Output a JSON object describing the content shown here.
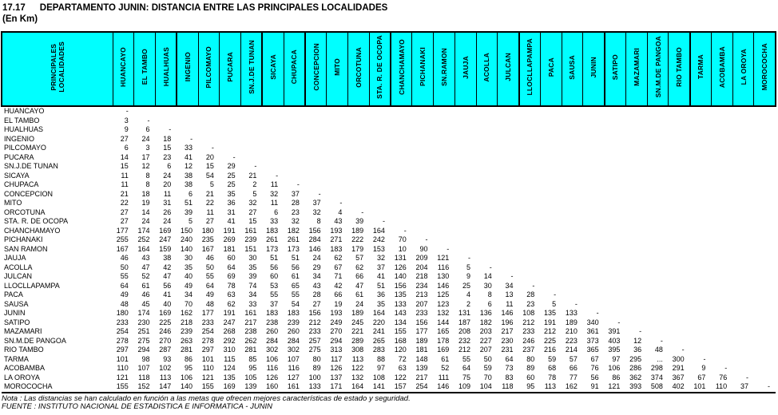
{
  "title": {
    "number": "17.17",
    "text": "DEPARTAMENTO JUNIN: DISTANCIA ENTRE LAS PRINCIPALES LOCALIDADES"
  },
  "subtitle": "(En Km)",
  "colors": {
    "header_bg": "#00ffff",
    "border": "#000000"
  },
  "note": "Nota : Las distancias se han calculado en función a las metas que ofrecen mejores características de estado y seguridad.",
  "source": "FUENTE : INSTITUTO NACIONAL DE ESTADISTICA E INFORMATICA - JUNIN",
  "table": {
    "corner_header": "PRINCIPALES\nLOCALIDADES",
    "columns": [
      "HUANCAYO",
      "EL TAMBO",
      "HUALHUAS",
      "INGENIO",
      "PILCOMAYO",
      "PUCARA",
      "SN.J.DE TUNAN",
      "SICAYA",
      "CHUPACA",
      "CONCEPCION",
      "MITO",
      "ORCOTUNA",
      "STA. R. DE OCOPA",
      "CHANCHAMAYO",
      "PICHANAKI",
      "SN.RAMON",
      "JAUJA",
      "ACOLLA",
      "JULCAN",
      "LLOCLLAPAMPA",
      "PACA",
      "SAUSA",
      "JUNIN",
      "SATIPO",
      "MAZAMARI",
      "SN.M.DE PANGOA",
      "RIO TAMBO",
      "TARMA",
      "ACOBAMBA",
      "LA OROYA",
      "MOROCOCHA"
    ],
    "rows": [
      {
        "label": "HUANCAYO",
        "values": [
          "-"
        ]
      },
      {
        "label": "EL TAMBO",
        "values": [
          "3",
          "-"
        ]
      },
      {
        "label": "HUALHUAS",
        "values": [
          "9",
          "6",
          "-"
        ]
      },
      {
        "label": "INGENIO",
        "values": [
          "27",
          "24",
          "18",
          "-"
        ]
      },
      {
        "label": "PILCOMAYO",
        "values": [
          "6",
          "3",
          "15",
          "33",
          "-"
        ]
      },
      {
        "label": "PUCARA",
        "values": [
          "14",
          "17",
          "23",
          "41",
          "20",
          "-"
        ]
      },
      {
        "label": "SN.J.DE TUNAN",
        "values": [
          "15",
          "12",
          "6",
          "12",
          "15",
          "29",
          "-"
        ]
      },
      {
        "label": "SICAYA",
        "values": [
          "11",
          "8",
          "24",
          "38",
          "54",
          "25",
          "21",
          "-"
        ]
      },
      {
        "label": "CHUPACA",
        "values": [
          "11",
          "8",
          "20",
          "38",
          "5",
          "25",
          "2",
          "11",
          "-"
        ]
      },
      {
        "label": "CONCEPCION",
        "values": [
          "21",
          "18",
          "11",
          "6",
          "21",
          "35",
          "5",
          "32",
          "37",
          "-"
        ]
      },
      {
        "label": "MITO",
        "values": [
          "22",
          "19",
          "31",
          "51",
          "22",
          "36",
          "32",
          "11",
          "28",
          "37",
          "-"
        ]
      },
      {
        "label": "ORCOTUNA",
        "values": [
          "27",
          "14",
          "26",
          "39",
          "11",
          "31",
          "27",
          "6",
          "23",
          "32",
          "4",
          "-"
        ]
      },
      {
        "label": "STA. R. DE OCOPA",
        "values": [
          "27",
          "24",
          "24",
          "5",
          "27",
          "41",
          "15",
          "33",
          "32",
          "8",
          "43",
          "39",
          "-"
        ]
      },
      {
        "label": "CHANCHAMAYO",
        "values": [
          "177",
          "174",
          "169",
          "150",
          "180",
          "191",
          "161",
          "183",
          "182",
          "156",
          "193",
          "189",
          "164",
          "-"
        ]
      },
      {
        "label": "PICHANAKI",
        "values": [
          "255",
          "252",
          "247",
          "240",
          "235",
          "269",
          "239",
          "261",
          "261",
          "284",
          "271",
          "222",
          "242",
          "70",
          "-"
        ]
      },
      {
        "label": "SAN RAMON",
        "values": [
          "167",
          "164",
          "159",
          "140",
          "167",
          "181",
          "151",
          "173",
          "173",
          "146",
          "183",
          "179",
          "153",
          "10",
          "90",
          "-"
        ]
      },
      {
        "label": "JAUJA",
        "values": [
          "46",
          "43",
          "38",
          "30",
          "46",
          "60",
          "30",
          "51",
          "51",
          "24",
          "62",
          "57",
          "32",
          "131",
          "209",
          "121",
          "-"
        ]
      },
      {
        "label": "ACOLLA",
        "values": [
          "50",
          "47",
          "42",
          "35",
          "50",
          "64",
          "35",
          "56",
          "56",
          "29",
          "67",
          "62",
          "37",
          "126",
          "204",
          "116",
          "5",
          "-"
        ]
      },
      {
        "label": "JULCAN",
        "values": [
          "55",
          "52",
          "47",
          "40",
          "55",
          "69",
          "39",
          "60",
          "61",
          "34",
          "71",
          "66",
          "41",
          "140",
          "218",
          "130",
          "9",
          "14",
          "-"
        ]
      },
      {
        "label": "LLOCLLAPAMPA",
        "values": [
          "64",
          "61",
          "56",
          "49",
          "64",
          "78",
          "74",
          "53",
          "65",
          "43",
          "42",
          "47",
          "51",
          "156",
          "234",
          "146",
          "25",
          "30",
          "34",
          "-"
        ]
      },
      {
        "label": "PACA",
        "values": [
          "49",
          "46",
          "41",
          "34",
          "49",
          "63",
          "34",
          "55",
          "55",
          "28",
          "66",
          "61",
          "36",
          "135",
          "213",
          "125",
          "4",
          "8",
          "13",
          "28",
          "-"
        ]
      },
      {
        "label": "SAUSA",
        "values": [
          "48",
          "45",
          "40",
          "70",
          "48",
          "62",
          "33",
          "37",
          "54",
          "27",
          "19",
          "24",
          "35",
          "133",
          "207",
          "123",
          "2",
          "6",
          "11",
          "23",
          "5",
          "-"
        ]
      },
      {
        "label": "JUNIN",
        "values": [
          "180",
          "174",
          "169",
          "162",
          "177",
          "191",
          "161",
          "183",
          "183",
          "156",
          "193",
          "189",
          "164",
          "143",
          "233",
          "132",
          "131",
          "136",
          "146",
          "108",
          "135",
          "133",
          "-"
        ]
      },
      {
        "label": "SATIPO",
        "values": [
          "233",
          "230",
          "225",
          "218",
          "233",
          "247",
          "217",
          "238",
          "239",
          "212",
          "249",
          "245",
          "220",
          "134",
          "156",
          "144",
          "187",
          "182",
          "196",
          "212",
          "191",
          "189",
          "340",
          "-"
        ]
      },
      {
        "label": "MAZAMARI",
        "values": [
          "254",
          "251",
          "246",
          "239",
          "254",
          "268",
          "238",
          "260",
          "260",
          "233",
          "270",
          "221",
          "241",
          "155",
          "177",
          "165",
          "208",
          "203",
          "217",
          "233",
          "212",
          "210",
          "361",
          "391",
          "-"
        ]
      },
      {
        "label": "SN.M.DE PANGOA",
        "values": [
          "278",
          "275",
          "270",
          "263",
          "278",
          "292",
          "262",
          "284",
          "284",
          "257",
          "294",
          "289",
          "265",
          "168",
          "189",
          "178",
          "232",
          "227",
          "230",
          "246",
          "225",
          "223",
          "373",
          "403",
          "12",
          "-"
        ]
      },
      {
        "label": "RIO TAMBO",
        "values": [
          "297",
          "294",
          "287",
          "281",
          "297",
          "310",
          "281",
          "302",
          "302",
          "275",
          "313",
          "308",
          "283",
          "120",
          "181",
          "169",
          "212",
          "207",
          "231",
          "237",
          "216",
          "214",
          "365",
          "395",
          "36",
          "48",
          "-"
        ]
      },
      {
        "label": "TARMA",
        "values": [
          "101",
          "98",
          "93",
          "86",
          "101",
          "115",
          "85",
          "106",
          "107",
          "80",
          "117",
          "113",
          "88",
          "72",
          "148",
          "61",
          "55",
          "50",
          "64",
          "80",
          "59",
          "57",
          "67",
          "97",
          "295",
          "...",
          "300",
          "-"
        ]
      },
      {
        "label": "ACOBAMBA",
        "values": [
          "110",
          "107",
          "102",
          "95",
          "110",
          "124",
          "95",
          "116",
          "116",
          "89",
          "126",
          "122",
          "97",
          "63",
          "139",
          "52",
          "64",
          "59",
          "73",
          "89",
          "68",
          "66",
          "76",
          "106",
          "286",
          "298",
          "291",
          "9",
          "-"
        ]
      },
      {
        "label": "LA OROYA",
        "values": [
          "121",
          "118",
          "113",
          "106",
          "121",
          "135",
          "105",
          "126",
          "127",
          "100",
          "137",
          "132",
          "108",
          "122",
          "217",
          "111",
          "75",
          "70",
          "83",
          "60",
          "78",
          "77",
          "56",
          "86",
          "362",
          "374",
          "367",
          "67",
          "76",
          "-"
        ]
      },
      {
        "label": "MOROCOCHA",
        "values": [
          "155",
          "152",
          "147",
          "140",
          "155",
          "169",
          "139",
          "160",
          "161",
          "133",
          "171",
          "164",
          "141",
          "157",
          "254",
          "146",
          "109",
          "104",
          "118",
          "95",
          "113",
          "162",
          "91",
          "121",
          "393",
          "508",
          "402",
          "101",
          "110",
          "37",
          "-"
        ]
      }
    ]
  }
}
